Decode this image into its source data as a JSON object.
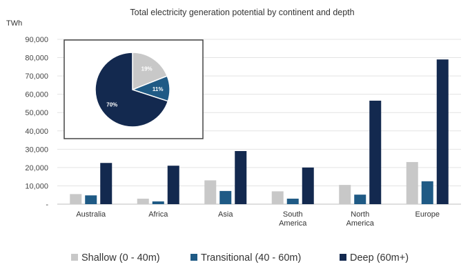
{
  "chart_data": [
    {
      "type": "bar",
      "title": "Total electricity generation potential by continent and depth",
      "ylabel": "TWh",
      "ylim": [
        0,
        90000
      ],
      "yticks": [
        "-",
        "10,000",
        "20,000",
        "30,000",
        "40,000",
        "50,000",
        "60,000",
        "70,000",
        "80,000",
        "90,000"
      ],
      "categories": [
        [
          "Australia"
        ],
        [
          "Africa"
        ],
        [
          "Asia"
        ],
        [
          "South",
          "America"
        ],
        [
          "North",
          "America"
        ],
        [
          "Europe"
        ]
      ],
      "series": [
        {
          "name": "Shallow (0 - 40m)",
          "color": "#c8c8c8",
          "values": [
            5500,
            3000,
            13000,
            7000,
            10500,
            23000
          ]
        },
        {
          "name": "Transitional (40 - 60m)",
          "color": "#1f5a85",
          "values": [
            4800,
            1500,
            7200,
            3000,
            5200,
            12500
          ]
        },
        {
          "name": "Deep (60m+)",
          "color": "#13294f",
          "values": [
            22500,
            21000,
            29000,
            20000,
            56500,
            79000
          ]
        }
      ],
      "grid": true,
      "legend": "bottom"
    },
    {
      "type": "pie",
      "labels": [
        "19%",
        "11%",
        "70%"
      ],
      "values": [
        19,
        11,
        70
      ],
      "colors": [
        "#c8c8c8",
        "#1f5a85",
        "#13294f"
      ]
    }
  ]
}
